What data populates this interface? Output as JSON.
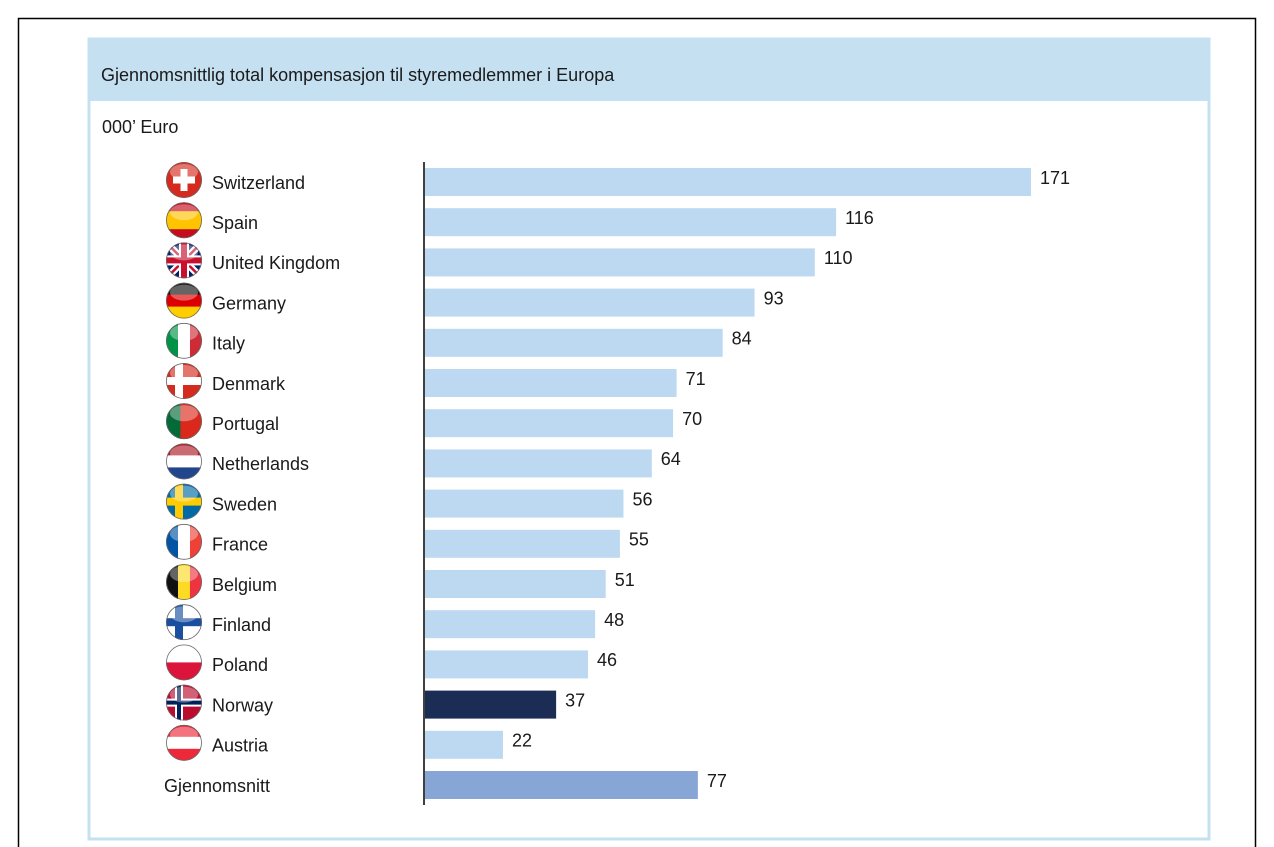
{
  "chart_data": {
    "type": "barh",
    "title": "Gjennomsnittlig total kompensasjon til styremedlemmer i Europa",
    "subtitle": "000’ Euro",
    "categories": [
      "Switzerland",
      "Spain",
      "United Kingdom",
      "Germany",
      "Italy",
      "Denmark",
      "Portugal",
      "Netherlands",
      "Sweden",
      "France",
      "Belgium",
      "Finland",
      "Poland",
      "Norway",
      "Austria",
      "Gjennomsnitt"
    ],
    "values": [
      171,
      116,
      110,
      93,
      84,
      71,
      70,
      64,
      56,
      55,
      51,
      48,
      46,
      37,
      22,
      77
    ],
    "colors": [
      "#bcd9f1",
      "#bcd9f1",
      "#bcd9f1",
      "#bcd9f1",
      "#bcd9f1",
      "#bcd9f1",
      "#bcd9f1",
      "#bcd9f1",
      "#bcd9f1",
      "#bcd9f1",
      "#bcd9f1",
      "#bcd9f1",
      "#bcd9f1",
      "#1b2d55",
      "#bcd9f1",
      "#87a6d6"
    ]
  }
}
